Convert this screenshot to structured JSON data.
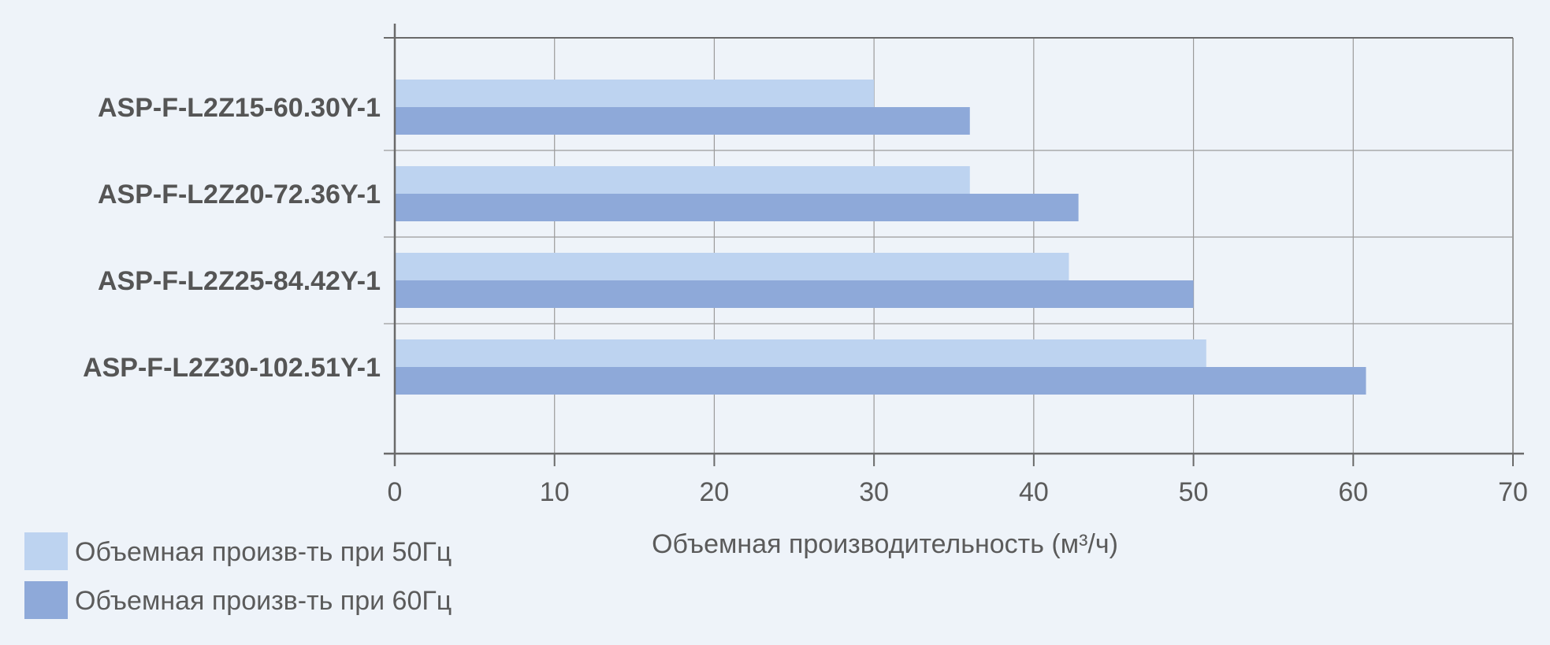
{
  "chart_data": {
    "type": "bar",
    "orientation": "horizontal",
    "categories": [
      "ASP-F-L2Z15-60.30Y-1",
      "ASP-F-L2Z20-72.36Y-1",
      "ASP-F-L2Z25-84.42Y-1",
      "ASP-F-L2Z30-102.51Y-1"
    ],
    "series": [
      {
        "name": "Объемная произв-ть при 50Гц",
        "color": "#bdd3f0",
        "values": [
          30,
          36,
          42.2,
          50.8
        ]
      },
      {
        "name": "Объемная произв-ть при 60Гц",
        "color": "#8ea9d9",
        "values": [
          36,
          42.8,
          50,
          60.8
        ]
      }
    ],
    "xlabel": "Объемная производительность (м³/ч)",
    "ylabel": "",
    "xlim": [
      0,
      70
    ],
    "xticks": [
      0,
      10,
      20,
      30,
      40,
      50,
      60,
      70
    ],
    "grid": true,
    "legend_position": "bottom-left"
  }
}
